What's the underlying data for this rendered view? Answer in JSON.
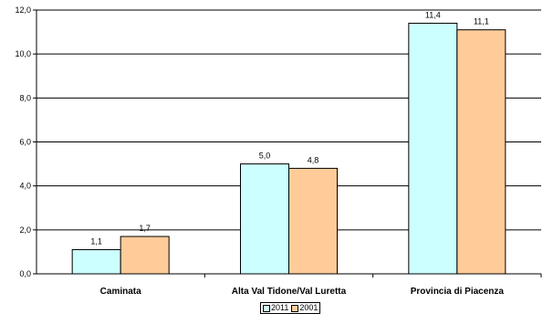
{
  "chart_data": {
    "type": "bar",
    "title": "",
    "xlabel": "",
    "ylabel": "",
    "categories": [
      "Caminata",
      "Alta Val Tidone/Val Luretta",
      "Provincia di Piacenza"
    ],
    "series": [
      {
        "name": "2011",
        "values": [
          1.1,
          5.0,
          11.4
        ],
        "labels": [
          "1,1",
          "5,0",
          "11,4"
        ],
        "color": "#CCFFFF"
      },
      {
        "name": "2001",
        "values": [
          1.7,
          4.8,
          11.1
        ],
        "labels": [
          "1,7",
          "4,8",
          "11,1"
        ],
        "color": "#FFCC99"
      }
    ],
    "ylim": [
      0,
      12
    ],
    "yticks": [
      0,
      2,
      4,
      6,
      8,
      10,
      12
    ],
    "ytick_labels": [
      "0,0",
      "2,0",
      "4,0",
      "6,0",
      "8,0",
      "10,0",
      "12,0"
    ],
    "grid": true,
    "legend_position": "bottom-center"
  }
}
